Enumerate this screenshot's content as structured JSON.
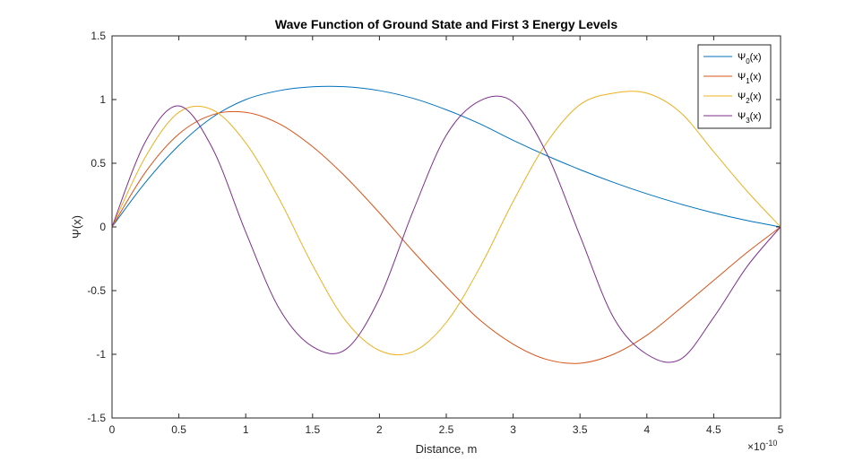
{
  "chart_data": {
    "type": "line",
    "title": "Wave Function of Ground State and First 3 Energy Levels",
    "xlabel": "Distance, m",
    "ylabel": "Ψ(x)",
    "x_exponent": "×10",
    "x_exponent_power": "-10",
    "xlim": [
      0,
      5
    ],
    "ylim": [
      -1.5,
      1.5
    ],
    "x_ticks": [
      0,
      0.5,
      1,
      1.5,
      2,
      2.5,
      3,
      3.5,
      4,
      4.5,
      5
    ],
    "x_tick_labels": [
      "0",
      "0.5",
      "1",
      "1.5",
      "2",
      "2.5",
      "3",
      "3.5",
      "4",
      "4.5",
      "5"
    ],
    "y_ticks": [
      -1.5,
      -1,
      -0.5,
      0,
      0.5,
      1,
      1.5
    ],
    "y_tick_labels": [
      "-1.5",
      "-1",
      "-0.5",
      "0",
      "0.5",
      "1",
      "1.5"
    ],
    "grid": false,
    "legend_position": "top-right",
    "x": [
      0,
      0.25,
      0.5,
      0.75,
      1.0,
      1.25,
      1.5,
      1.75,
      2.0,
      2.25,
      2.5,
      2.75,
      3.0,
      3.25,
      3.5,
      3.75,
      4.0,
      4.25,
      4.5,
      4.75,
      5.0
    ],
    "series": [
      {
        "name": "Ψ",
        "sub": "0",
        "suffix": "(x)",
        "color": "#0072BD",
        "values": [
          0,
          0.35,
          0.64,
          0.86,
          1.0,
          1.07,
          1.1,
          1.1,
          1.07,
          1.01,
          0.92,
          0.81,
          0.68,
          0.56,
          0.45,
          0.35,
          0.26,
          0.18,
          0.11,
          0.05,
          0
        ]
      },
      {
        "name": "Ψ",
        "sub": "1",
        "suffix": "(x)",
        "color": "#D95319",
        "values": [
          0,
          0.43,
          0.73,
          0.88,
          0.9,
          0.81,
          0.63,
          0.39,
          0.11,
          -0.19,
          -0.47,
          -0.73,
          -0.92,
          -1.04,
          -1.07,
          -1.0,
          -0.85,
          -0.64,
          -0.42,
          -0.2,
          0
        ]
      },
      {
        "name": "Ψ",
        "sub": "2",
        "suffix": "(x)",
        "color": "#EDB120",
        "values": [
          0,
          0.55,
          0.9,
          0.92,
          0.66,
          0.22,
          -0.3,
          -0.74,
          -0.97,
          -0.98,
          -0.75,
          -0.32,
          0.2,
          0.66,
          0.96,
          1.05,
          1.05,
          0.9,
          0.59,
          0.28,
          0
        ]
      },
      {
        "name": "Ψ",
        "sub": "3",
        "suffix": "(x)",
        "color": "#7E2F8E",
        "values": [
          0,
          0.67,
          0.95,
          0.62,
          -0.04,
          -0.64,
          -0.94,
          -0.96,
          -0.56,
          0.12,
          0.72,
          0.99,
          0.98,
          0.58,
          -0.07,
          -0.71,
          -1.0,
          -1.04,
          -0.71,
          -0.31,
          0
        ]
      }
    ]
  }
}
